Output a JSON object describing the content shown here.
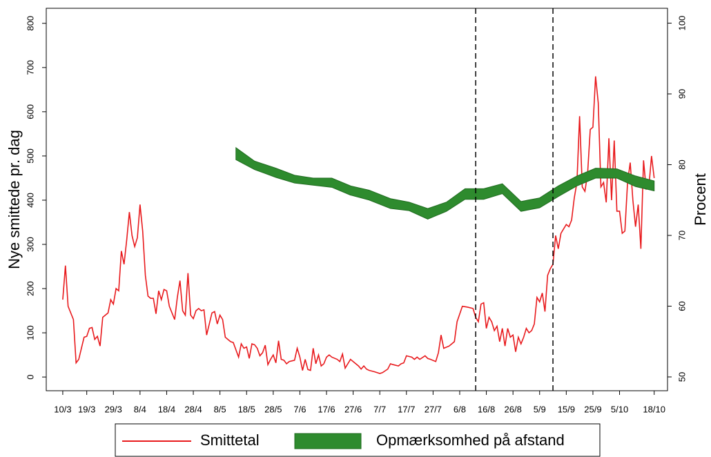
{
  "chart_data": {
    "type": "line",
    "ylabel": "Nye smittede pr. dag",
    "y2label": "Procent",
    "xlim": [
      -6.2,
      227
    ],
    "ylim": [
      -31,
      834
    ],
    "y2lim": [
      48.05,
      102.1
    ],
    "xticks": [
      {
        "value": 0,
        "label": "10/3"
      },
      {
        "value": 9,
        "label": "19/3"
      },
      {
        "value": 19,
        "label": "29/3"
      },
      {
        "value": 29,
        "label": "8/4"
      },
      {
        "value": 39,
        "label": "18/4"
      },
      {
        "value": 49,
        "label": "28/4"
      },
      {
        "value": 59,
        "label": "8/5"
      },
      {
        "value": 69,
        "label": "18/5"
      },
      {
        "value": 79,
        "label": "28/5"
      },
      {
        "value": 89,
        "label": "7/6"
      },
      {
        "value": 99,
        "label": "17/6"
      },
      {
        "value": 109,
        "label": "27/6"
      },
      {
        "value": 119,
        "label": "7/7"
      },
      {
        "value": 129,
        "label": "17/7"
      },
      {
        "value": 139,
        "label": "27/7"
      },
      {
        "value": 149,
        "label": "6/8"
      },
      {
        "value": 159,
        "label": "16/8"
      },
      {
        "value": 169,
        "label": "26/8"
      },
      {
        "value": 179,
        "label": "5/9"
      },
      {
        "value": 189,
        "label": "15/9"
      },
      {
        "value": 199,
        "label": "25/9"
      },
      {
        "value": 209,
        "label": "5/10"
      },
      {
        "value": 222,
        "label": "18/10"
      }
    ],
    "yticks": [
      0,
      100,
      200,
      300,
      400,
      500,
      600,
      700,
      800
    ],
    "y2ticks": [
      50,
      60,
      70,
      80,
      90,
      100
    ],
    "vlines": [
      155,
      184
    ],
    "series": [
      {
        "name": "Smittetal",
        "color": "#e8191c",
        "x": [
          0,
          1,
          2,
          4,
          5,
          6,
          8,
          9,
          10,
          11,
          12,
          13,
          14,
          15,
          17,
          18,
          19,
          20,
          21,
          22,
          23,
          24,
          25,
          26,
          27,
          28,
          29,
          30,
          31,
          32,
          33,
          34,
          35,
          36,
          37,
          38,
          39,
          40,
          41,
          42,
          43,
          44,
          45,
          46,
          47,
          48,
          49,
          50,
          51,
          52,
          53,
          54,
          55,
          56,
          57,
          58,
          59,
          60,
          61,
          62,
          63,
          64,
          66,
          67,
          68,
          69,
          70,
          71,
          72,
          73,
          74,
          75,
          76,
          77,
          78,
          79,
          80,
          81,
          82,
          83,
          84,
          85,
          87,
          88,
          89,
          90,
          91,
          92,
          93,
          94,
          95,
          96,
          97,
          98,
          99,
          100,
          101,
          103,
          104,
          105,
          106,
          108,
          109,
          111,
          112,
          113,
          114,
          115,
          117,
          119,
          120,
          122,
          123,
          124,
          126,
          127,
          128,
          129,
          131,
          132,
          133,
          134,
          136,
          137,
          138,
          140,
          141,
          142,
          143,
          145,
          146,
          147,
          148,
          150,
          152,
          154,
          155,
          156,
          157,
          158,
          159,
          160,
          161,
          162,
          163,
          164,
          165,
          166,
          167,
          168,
          169,
          170,
          171,
          172,
          173,
          174,
          175,
          176,
          177,
          178,
          179,
          180,
          181,
          182,
          183,
          184,
          185,
          186,
          187,
          188,
          189,
          190,
          191,
          192,
          193,
          194,
          195,
          196,
          197,
          198,
          199,
          200,
          201,
          202,
          203,
          204,
          205,
          206,
          207,
          208,
          209,
          210,
          211,
          212,
          213,
          214,
          215,
          216,
          217,
          218,
          219,
          220,
          221,
          222
        ],
        "values": [
          175,
          252,
          160,
          130,
          32,
          40,
          90,
          92,
          110,
          112,
          85,
          92,
          70,
          135,
          145,
          175,
          165,
          200,
          195,
          285,
          255,
          310,
          373,
          320,
          295,
          315,
          390,
          330,
          230,
          183,
          178,
          178,
          143,
          195,
          175,
          198,
          195,
          160,
          145,
          130,
          180,
          218,
          150,
          140,
          235,
          140,
          132,
          150,
          155,
          150,
          152,
          95,
          120,
          145,
          148,
          120,
          140,
          130,
          90,
          85,
          80,
          78,
          45,
          75,
          65,
          68,
          42,
          75,
          73,
          65,
          48,
          55,
          72,
          28,
          40,
          50,
          32,
          82,
          40,
          38,
          30,
          35,
          38,
          65,
          45,
          15,
          40,
          17,
          15,
          65,
          30,
          50,
          25,
          30,
          45,
          50,
          45,
          40,
          35,
          52,
          20,
          40,
          35,
          25,
          18,
          25,
          18,
          15,
          12,
          8,
          10,
          18,
          30,
          28,
          25,
          30,
          32,
          48,
          45,
          40,
          45,
          40,
          48,
          42,
          40,
          35,
          55,
          95,
          65,
          70,
          75,
          80,
          125,
          160,
          158,
          155,
          135,
          125,
          165,
          168,
          110,
          135,
          125,
          105,
          115,
          80,
          110,
          70,
          110,
          90,
          95,
          57,
          90,
          75,
          90,
          110,
          100,
          105,
          120,
          180,
          170,
          190,
          148,
          230,
          245,
          255,
          320,
          290,
          325,
          335,
          345,
          340,
          355,
          405,
          440,
          590,
          430,
          420,
          460,
          560,
          565,
          680,
          620,
          430,
          440,
          395,
          540,
          400,
          535,
          375,
          375,
          325,
          330,
          440,
          485,
          400,
          340,
          390,
          290,
          490,
          425,
          430,
          500,
          450
        ]
      },
      {
        "name": "Opmærksomhed på afstand",
        "color": "#2e8b2e",
        "axis": "y2",
        "x": [
          65,
          72,
          80,
          87,
          94,
          101,
          108,
          115,
          123,
          130,
          137,
          144,
          151,
          158,
          165,
          172,
          179,
          186,
          193,
          200,
          208,
          215,
          222
        ],
        "low": [
          80.7,
          79.3,
          78.2,
          77.4,
          77.1,
          76.8,
          75.7,
          75.0,
          73.8,
          73.5,
          72.3,
          73.4,
          75.1,
          75.1,
          75.9,
          73.4,
          73.9,
          75.5,
          77.0,
          78.1,
          78.1,
          76.9,
          76.3
        ],
        "high": [
          82.4,
          80.5,
          79.5,
          78.5,
          78.1,
          78.1,
          77.0,
          76.4,
          75.2,
          74.7,
          73.8,
          74.7,
          76.6,
          76.6,
          77.3,
          74.8,
          75.3,
          77.0,
          78.4,
          79.5,
          79.4,
          78.4,
          77.7
        ]
      }
    ]
  }
}
